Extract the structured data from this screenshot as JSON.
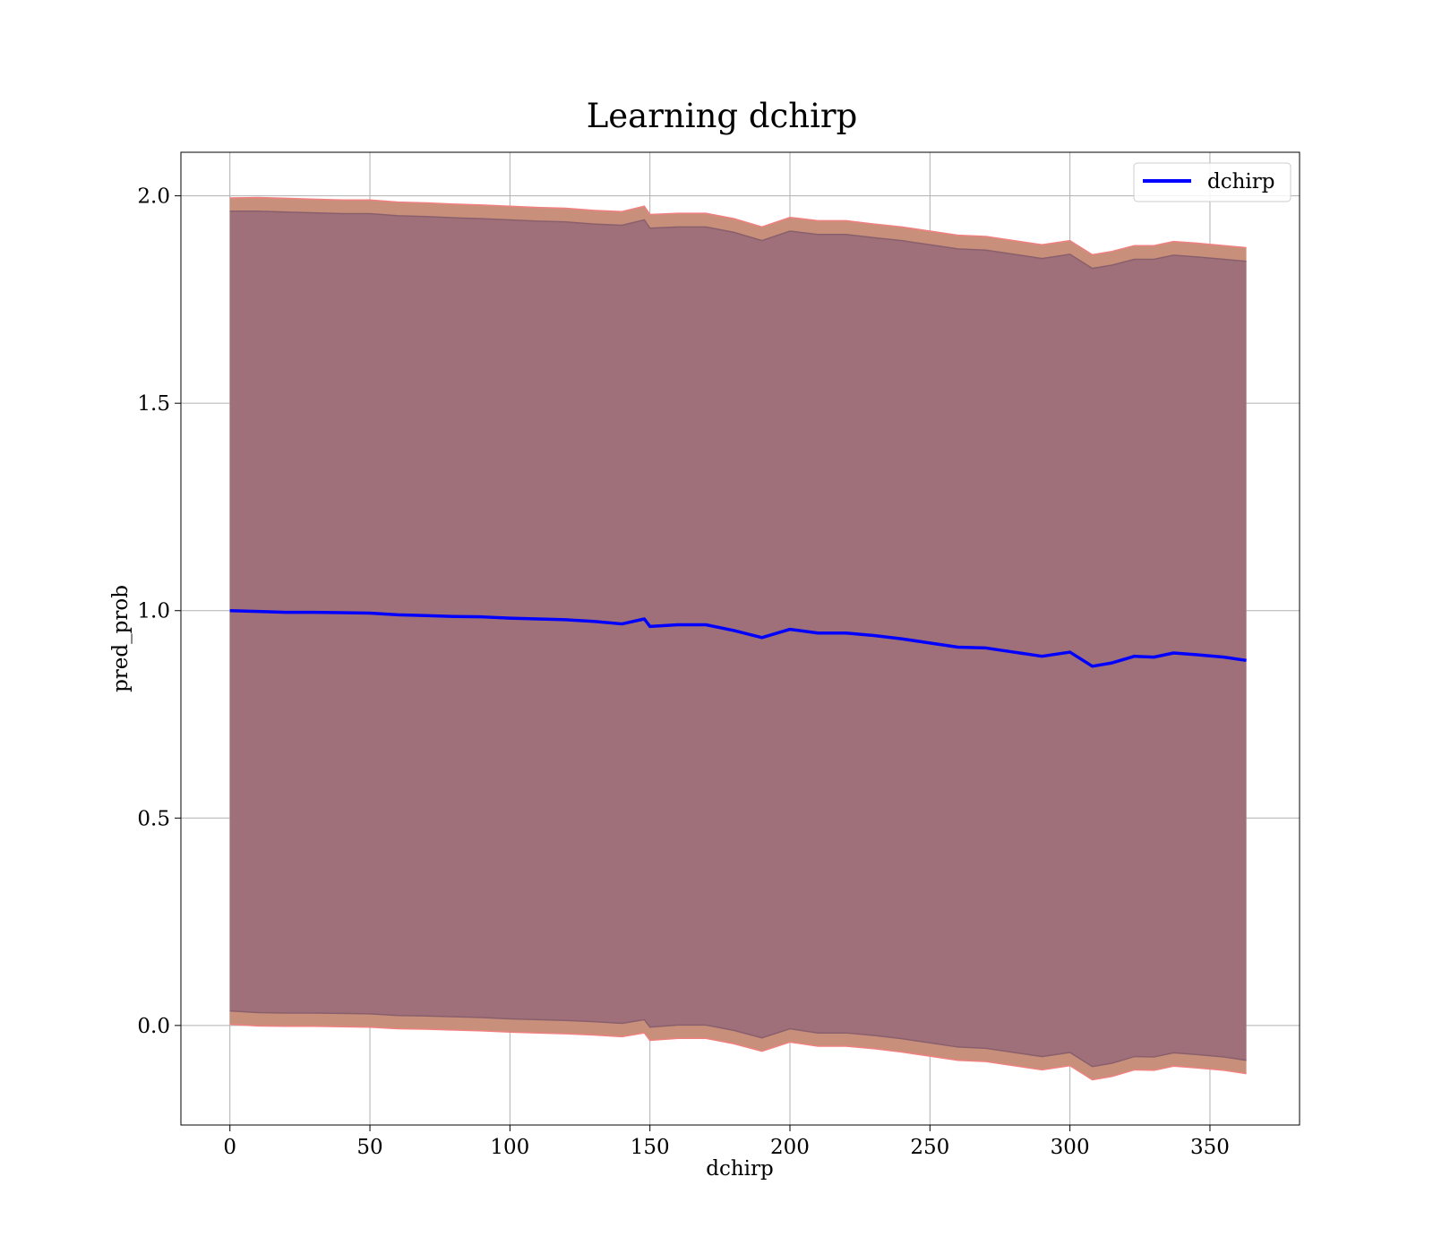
{
  "chart_data": {
    "type": "line",
    "title": "Learning dchirp",
    "xlabel": "dchirp",
    "ylabel": "pred_prob",
    "xlim": [
      -17.5,
      382
    ],
    "ylim": [
      -0.24,
      2.105
    ],
    "xticks": [
      0,
      50,
      100,
      150,
      200,
      250,
      300,
      350
    ],
    "xtick_labels": [
      "0",
      "50",
      "100",
      "150",
      "200",
      "250",
      "300",
      "350"
    ],
    "yticks": [
      0.0,
      0.5,
      1.0,
      1.5,
      2.0
    ],
    "ytick_labels": [
      "0.0",
      "0.5",
      "1.0",
      "1.5",
      "2.0"
    ],
    "grid": true,
    "legend": {
      "position": "top-right",
      "entries": [
        "dchirp"
      ]
    },
    "series": [
      {
        "name": "dchirp",
        "color": "#0000ff",
        "x": [
          0,
          10,
          20,
          30,
          40,
          50,
          60,
          70,
          80,
          90,
          100,
          110,
          120,
          130,
          140,
          148,
          150,
          160,
          170,
          180,
          190,
          200,
          210,
          220,
          230,
          240,
          250,
          260,
          270,
          280,
          290,
          300,
          308,
          315,
          323,
          330,
          337,
          345,
          355,
          363
        ],
        "y": [
          1.0,
          0.998,
          0.996,
          0.996,
          0.995,
          0.994,
          0.99,
          0.988,
          0.986,
          0.985,
          0.982,
          0.98,
          0.978,
          0.974,
          0.968,
          0.98,
          0.962,
          0.966,
          0.966,
          0.952,
          0.935,
          0.955,
          0.946,
          0.946,
          0.94,
          0.932,
          0.922,
          0.912,
          0.91,
          0.9,
          0.89,
          0.9,
          0.866,
          0.874,
          0.89,
          0.888,
          0.898,
          0.894,
          0.888,
          0.88
        ]
      }
    ],
    "bands": [
      {
        "kind": "outer",
        "fill": "#c8907a",
        "edge": "#f08080",
        "x": [
          0,
          10,
          20,
          30,
          40,
          50,
          60,
          70,
          80,
          90,
          100,
          110,
          120,
          130,
          140,
          148,
          150,
          160,
          170,
          180,
          190,
          200,
          210,
          220,
          230,
          240,
          250,
          260,
          270,
          280,
          290,
          300,
          308,
          315,
          323,
          330,
          337,
          345,
          355,
          363
        ],
        "upper": [
          1.995,
          1.996,
          1.994,
          1.992,
          1.99,
          1.99,
          1.985,
          1.983,
          1.98,
          1.978,
          1.975,
          1.972,
          1.97,
          1.965,
          1.962,
          1.975,
          1.955,
          1.958,
          1.958,
          1.945,
          1.925,
          1.948,
          1.94,
          1.94,
          1.932,
          1.925,
          1.915,
          1.905,
          1.902,
          1.892,
          1.882,
          1.892,
          1.858,
          1.866,
          1.88,
          1.88,
          1.89,
          1.886,
          1.88,
          1.875
        ],
        "lower": [
          0.003,
          -0.001,
          -0.002,
          -0.002,
          -0.003,
          -0.004,
          -0.008,
          -0.009,
          -0.011,
          -0.013,
          -0.016,
          -0.018,
          -0.02,
          -0.023,
          -0.027,
          -0.018,
          -0.036,
          -0.031,
          -0.031,
          -0.044,
          -0.062,
          -0.04,
          -0.05,
          -0.05,
          -0.056,
          -0.064,
          -0.074,
          -0.084,
          -0.087,
          -0.097,
          -0.107,
          -0.097,
          -0.131,
          -0.123,
          -0.107,
          -0.108,
          -0.098,
          -0.102,
          -0.108,
          -0.116
        ]
      },
      {
        "kind": "inner",
        "fill": "#a0707a",
        "edge": "#8a5f6d",
        "x": [
          0,
          10,
          20,
          30,
          40,
          50,
          60,
          70,
          80,
          90,
          100,
          110,
          120,
          130,
          140,
          148,
          150,
          160,
          170,
          180,
          190,
          200,
          210,
          220,
          230,
          240,
          250,
          260,
          270,
          280,
          290,
          300,
          308,
          315,
          323,
          330,
          337,
          345,
          355,
          363
        ],
        "upper": [
          1.963,
          1.963,
          1.961,
          1.959,
          1.957,
          1.957,
          1.952,
          1.95,
          1.947,
          1.945,
          1.942,
          1.939,
          1.937,
          1.932,
          1.929,
          1.942,
          1.922,
          1.925,
          1.925,
          1.912,
          1.892,
          1.915,
          1.907,
          1.907,
          1.899,
          1.892,
          1.882,
          1.872,
          1.869,
          1.859,
          1.849,
          1.859,
          1.825,
          1.833,
          1.847,
          1.847,
          1.857,
          1.853,
          1.847,
          1.842
        ],
        "lower": [
          0.035,
          0.031,
          0.03,
          0.03,
          0.029,
          0.028,
          0.024,
          0.023,
          0.021,
          0.019,
          0.016,
          0.014,
          0.012,
          0.009,
          0.005,
          0.014,
          -0.004,
          0.001,
          0.001,
          -0.012,
          -0.03,
          -0.008,
          -0.018,
          -0.018,
          -0.024,
          -0.032,
          -0.042,
          -0.052,
          -0.055,
          -0.065,
          -0.075,
          -0.065,
          -0.099,
          -0.091,
          -0.075,
          -0.076,
          -0.066,
          -0.07,
          -0.076,
          -0.084
        ]
      }
    ]
  }
}
